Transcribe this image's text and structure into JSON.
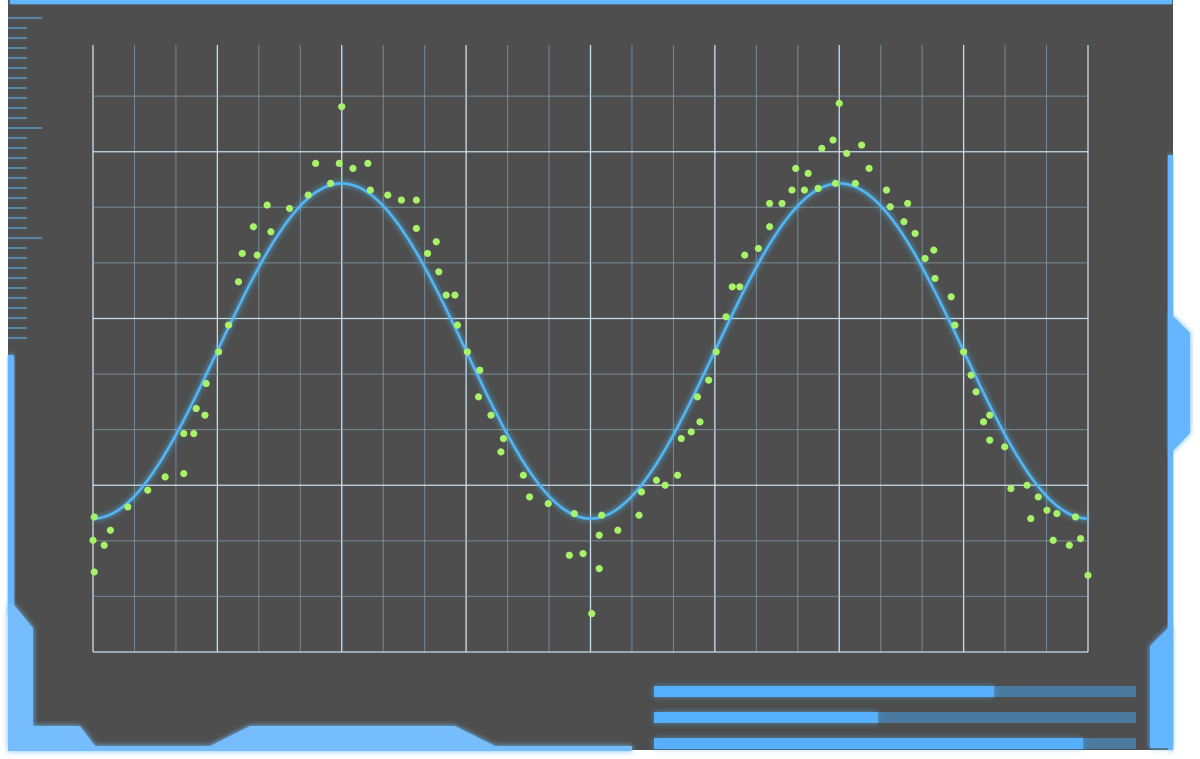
{
  "colors": {
    "panel": "#4d4e4d",
    "accent": "#63b6ff",
    "fit_line": "#52b6f4",
    "points": "#a8f26a",
    "grid_major": "#cfe6f5",
    "grid_minor": "#8aa3b5"
  },
  "progress_bars": [
    {
      "value": 0.705
    },
    {
      "value": 0.465
    },
    {
      "value": 0.89
    }
  ],
  "chart_data": {
    "type": "scatter",
    "title": "",
    "xlabel": "",
    "ylabel": "",
    "xlim": [
      0,
      8
    ],
    "ylim": [
      0,
      3.64
    ],
    "x_major_step": 1,
    "x_minor_per_major": 3,
    "y_major_step": 1,
    "y_minor_per_major": 3,
    "grid": true,
    "tick_labels": false,
    "fit": {
      "type": "sine",
      "mean": 1.805,
      "amplitude": 1.005,
      "period": 4,
      "minimum_at_x": 0
    },
    "points": [
      [
        0.01,
        0.81
      ],
      [
        0.0,
        0.67
      ],
      [
        0.09,
        0.64
      ],
      [
        0.14,
        0.73
      ],
      [
        0.01,
        0.48
      ],
      [
        0.28,
        0.87
      ],
      [
        0.44,
        0.97
      ],
      [
        0.58,
        1.05
      ],
      [
        0.73,
        1.07
      ],
      [
        0.73,
        1.31
      ],
      [
        0.81,
        1.31
      ],
      [
        0.83,
        1.46
      ],
      [
        0.9,
        1.42
      ],
      [
        0.91,
        1.61
      ],
      [
        1.01,
        1.8
      ],
      [
        1.09,
        1.96
      ],
      [
        1.17,
        2.22
      ],
      [
        1.2,
        2.39
      ],
      [
        1.29,
        2.55
      ],
      [
        1.32,
        2.38
      ],
      [
        1.4,
        2.68
      ],
      [
        1.43,
        2.52
      ],
      [
        1.58,
        2.66
      ],
      [
        1.73,
        2.74
      ],
      [
        1.79,
        2.93
      ],
      [
        1.91,
        2.81
      ],
      [
        1.98,
        2.93
      ],
      [
        2.0,
        3.27
      ],
      [
        2.09,
        2.9
      ],
      [
        2.21,
        2.93
      ],
      [
        2.23,
        2.77
      ],
      [
        2.37,
        2.74
      ],
      [
        2.48,
        2.71
      ],
      [
        2.6,
        2.71
      ],
      [
        2.6,
        2.54
      ],
      [
        2.76,
        2.46
      ],
      [
        2.69,
        2.39
      ],
      [
        2.78,
        2.28
      ],
      [
        2.84,
        2.14
      ],
      [
        2.91,
        2.14
      ],
      [
        2.93,
        1.96
      ],
      [
        3.01,
        1.8
      ],
      [
        3.11,
        1.69
      ],
      [
        3.1,
        1.53
      ],
      [
        3.2,
        1.42
      ],
      [
        3.3,
        1.28
      ],
      [
        3.28,
        1.2
      ],
      [
        3.46,
        1.06
      ],
      [
        3.51,
        0.93
      ],
      [
        3.66,
        0.89
      ],
      [
        3.87,
        0.83
      ],
      [
        3.83,
        0.58
      ],
      [
        3.94,
        0.59
      ],
      [
        4.01,
        0.23
      ],
      [
        4.09,
        0.82
      ],
      [
        4.07,
        0.7
      ],
      [
        4.07,
        0.5
      ],
      [
        4.22,
        0.73
      ],
      [
        4.39,
        0.82
      ],
      [
        4.41,
        0.96
      ],
      [
        4.53,
        1.03
      ],
      [
        4.6,
        1.0
      ],
      [
        4.7,
        1.06
      ],
      [
        4.73,
        1.28
      ],
      [
        4.81,
        1.32
      ],
      [
        4.88,
        1.38
      ],
      [
        4.86,
        1.53
      ],
      [
        4.95,
        1.63
      ],
      [
        5.01,
        1.8
      ],
      [
        5.09,
        2.01
      ],
      [
        5.14,
        2.19
      ],
      [
        5.2,
        2.19
      ],
      [
        5.24,
        2.38
      ],
      [
        5.35,
        2.42
      ],
      [
        5.44,
        2.55
      ],
      [
        5.44,
        2.69
      ],
      [
        5.54,
        2.69
      ],
      [
        5.62,
        2.77
      ],
      [
        5.72,
        2.77
      ],
      [
        5.65,
        2.9
      ],
      [
        5.75,
        2.87
      ],
      [
        5.83,
        2.78
      ],
      [
        5.86,
        3.02
      ],
      [
        5.95,
        3.07
      ],
      [
        5.97,
        2.81
      ],
      [
        6.0,
        3.29
      ],
      [
        6.06,
        2.99
      ],
      [
        6.18,
        3.04
      ],
      [
        6.13,
        2.81
      ],
      [
        6.24,
        2.9
      ],
      [
        6.38,
        2.77
      ],
      [
        6.41,
        2.67
      ],
      [
        6.55,
        2.69
      ],
      [
        6.52,
        2.58
      ],
      [
        6.61,
        2.51
      ],
      [
        6.69,
        2.36
      ],
      [
        6.76,
        2.41
      ],
      [
        6.77,
        2.24
      ],
      [
        6.9,
        2.13
      ],
      [
        6.93,
        1.96
      ],
      [
        7.0,
        1.8
      ],
      [
        7.06,
        1.66
      ],
      [
        7.1,
        1.56
      ],
      [
        7.21,
        1.42
      ],
      [
        7.16,
        1.38
      ],
      [
        7.21,
        1.27
      ],
      [
        7.33,
        1.23
      ],
      [
        7.38,
        0.98
      ],
      [
        7.51,
        1.0
      ],
      [
        7.6,
        0.93
      ],
      [
        7.54,
        0.8
      ],
      [
        7.67,
        0.85
      ],
      [
        7.75,
        0.83
      ],
      [
        7.9,
        0.81
      ],
      [
        7.72,
        0.67
      ],
      [
        7.85,
        0.64
      ],
      [
        7.94,
        0.68
      ],
      [
        8.0,
        0.46
      ]
    ]
  }
}
